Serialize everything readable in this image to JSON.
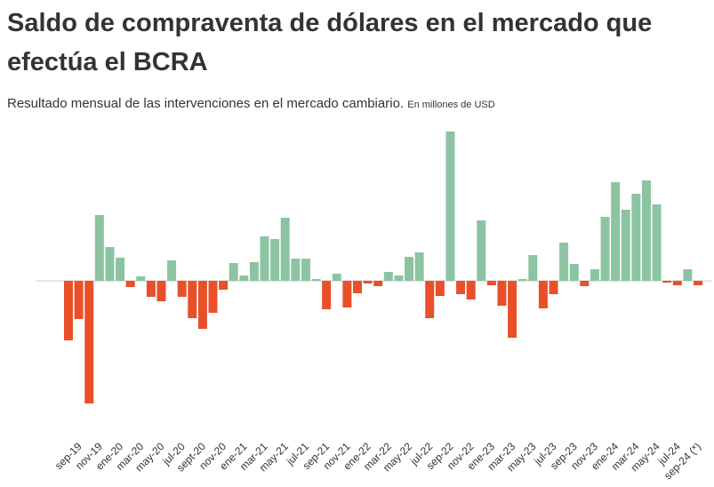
{
  "chart_data": {
    "type": "bar",
    "title": "Saldo de compraventa de dólares en el mercado que efectúa el BCRA",
    "subtitle": "Resultado  mensual de las intervenciones en el mercado cambiario.",
    "unit_note": "En millones de USD",
    "categories": [
      null,
      "sep-19",
      null,
      "nov-19",
      null,
      "ene-20",
      null,
      "mar-20",
      null,
      "may-20",
      null,
      "jul-20",
      null,
      "sept-20",
      null,
      "nov-20",
      null,
      "ene-21",
      null,
      "mar-21",
      null,
      "may-21",
      null,
      "jul-21",
      null,
      "sep-21",
      null,
      "nov-21",
      null,
      "ene-22",
      null,
      "mar-22",
      null,
      "may-22",
      null,
      "jul-22",
      null,
      "sep-22",
      null,
      "nov-22",
      null,
      "ene-23",
      null,
      "mar-23",
      null,
      "may-23",
      null,
      "jul-23",
      null,
      "sep-23",
      null,
      "nov-23",
      null,
      "ene-24",
      null,
      "mar-24",
      null,
      "may-24",
      null,
      "jul-24",
      null,
      "sep-24 (*)"
    ],
    "values": [
      -2010,
      -1290,
      -4140,
      2220,
      1140,
      780,
      -210,
      150,
      -540,
      -690,
      690,
      -540,
      -1260,
      -1620,
      -1080,
      -300,
      600,
      180,
      630,
      1500,
      1410,
      2130,
      750,
      750,
      60,
      -960,
      240,
      -900,
      -420,
      -90,
      -180,
      300,
      180,
      810,
      960,
      -1260,
      -510,
      5040,
      -450,
      -630,
      2040,
      -150,
      -840,
      -1920,
      60,
      870,
      -930,
      -450,
      1290,
      570,
      -180,
      390,
      2160,
      3330,
      2400,
      2940,
      3390,
      2580,
      -60,
      -150,
      390,
      -150
    ],
    "positive_color": "#8cc4a2",
    "negative_color": "#e8502a"
  }
}
